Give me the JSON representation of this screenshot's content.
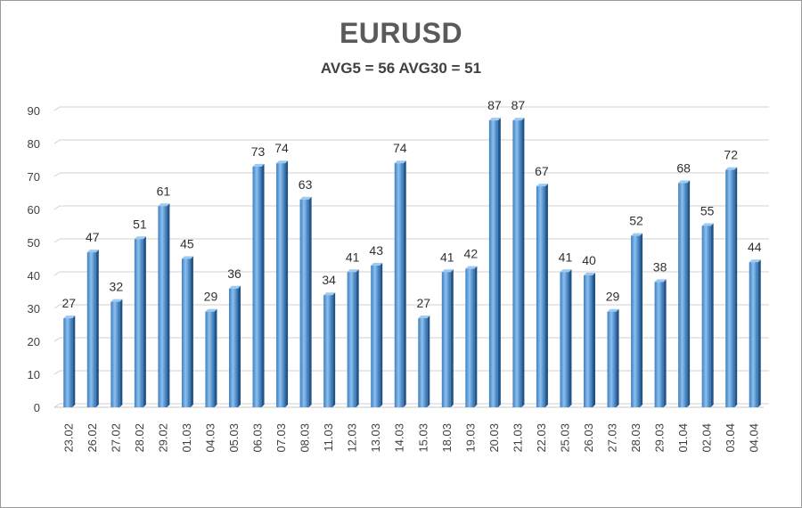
{
  "chart_data": {
    "type": "bar",
    "title": "EURUSD",
    "subtitle": "AVG5 = 56 AVG30 = 51",
    "xlabel": "",
    "ylabel": "",
    "ylim": [
      0,
      90
    ],
    "yticks": [
      0,
      10,
      20,
      30,
      40,
      50,
      60,
      70,
      80,
      90
    ],
    "grid": true,
    "bar_color": "#5b9bd5",
    "categories": [
      "23.02",
      "26.02",
      "27.02",
      "28.02",
      "29.02",
      "01.03",
      "04.03",
      "05.03",
      "06.03",
      "07.03",
      "08.03",
      "11.03",
      "12.03",
      "13.03",
      "14.03",
      "15.03",
      "18.03",
      "19.03",
      "20.03",
      "21.03",
      "22.03",
      "25.03",
      "26.03",
      "27.03",
      "28.03",
      "29.03",
      "01.04",
      "02.04",
      "03.04",
      "04.04"
    ],
    "values": [
      27,
      47,
      32,
      51,
      61,
      45,
      29,
      36,
      73,
      74,
      63,
      34,
      41,
      43,
      74,
      27,
      41,
      42,
      87,
      87,
      67,
      41,
      40,
      29,
      52,
      38,
      68,
      55,
      72,
      44
    ]
  }
}
